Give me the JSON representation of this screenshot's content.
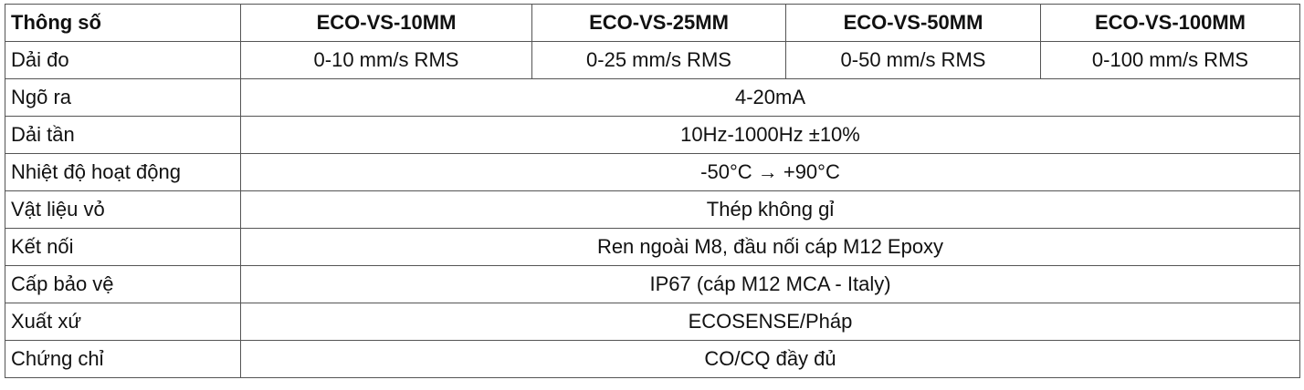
{
  "table": {
    "header": [
      "Thông số",
      "ECO-VS-10MM",
      "ECO-VS-25MM",
      "ECO-VS-50MM",
      "ECO-VS-100MM"
    ],
    "rows": [
      [
        "Dải đo",
        "0-10 mm/s RMS",
        "0-25 mm/s RMS",
        "0-50 mm/s RMS",
        "0-100 mm/s RMS"
      ],
      [
        "Ngõ ra",
        "4-20mA"
      ],
      [
        "Dải tần",
        "10Hz-1000Hz ±10%"
      ],
      [
        "Nhiệt độ hoạt động",
        "-50°C → +90°C"
      ],
      [
        "Vật liệu vỏ",
        "Thép không gỉ"
      ],
      [
        "Kết nối",
        "Ren ngoài M8, đầu nối cáp M12 Epoxy"
      ],
      [
        "Cấp bảo vệ",
        "IP67 (cáp M12 MCA - Italy)"
      ],
      [
        "Xuất xứ",
        "ECOSENSE/Pháp"
      ],
      [
        "Chứng chỉ",
        "CO/CQ đầy đủ"
      ]
    ]
  }
}
